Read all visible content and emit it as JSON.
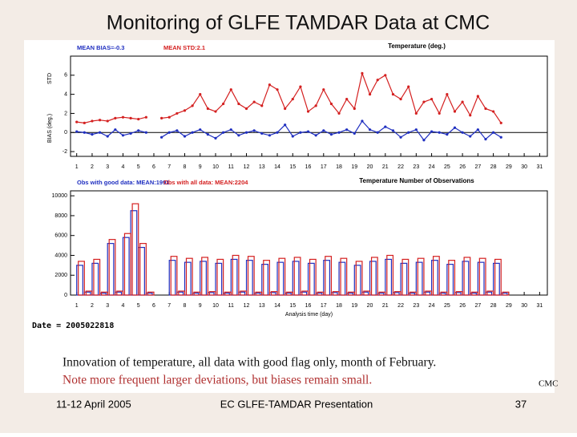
{
  "slide": {
    "title": "Monitoring of GLFE TAMDAR Data at CMC",
    "caption": [
      "Innovation of temperature, all data with good flag only, month of February.",
      "Note more frequent larger deviations, but biases remain small."
    ],
    "source": "CMC",
    "date_label": "Date = 2005022818",
    "footer": {
      "date": "11-12 April 2005",
      "event": "EC GLFE-TAMDAR Presentation",
      "page": "37"
    }
  },
  "chart_data": [
    {
      "type": "line",
      "title": "Temperature (deg.)",
      "y_label_top": "STD",
      "y_label": "BIAS (deg.)",
      "x": [
        1,
        1.5,
        2,
        2.5,
        3,
        3.5,
        4,
        4.5,
        5,
        5.5,
        6,
        6.5,
        7,
        7.5,
        8,
        8.5,
        9,
        9.5,
        10,
        10.5,
        11,
        11.5,
        12,
        12.5,
        13,
        13.5,
        14,
        14.5,
        15,
        15.5,
        16,
        16.5,
        17,
        17.5,
        18,
        18.5,
        19,
        19.5,
        20,
        20.5,
        21,
        21.5,
        22,
        22.5,
        23,
        23.5,
        24,
        24.5,
        25,
        25.5,
        26,
        26.5,
        27,
        27.5,
        28,
        28.5
      ],
      "series": [
        {
          "name": "MEAN BIAS=-0.3",
          "color": "#1f2fc0",
          "values": [
            0.1,
            0.0,
            -0.2,
            0.0,
            -0.4,
            0.3,
            -0.3,
            -0.1,
            0.2,
            0.0,
            null,
            -0.5,
            0.0,
            0.2,
            -0.4,
            0.0,
            0.3,
            -0.2,
            -0.6,
            0.0,
            0.3,
            -0.3,
            0.0,
            0.2,
            -0.1,
            -0.3,
            0.0,
            0.8,
            -0.4,
            0.0,
            0.1,
            -0.3,
            0.2,
            -0.2,
            0.0,
            0.3,
            -0.1,
            1.2,
            0.3,
            0.0,
            0.6,
            0.2,
            -0.5,
            0.0,
            0.3,
            -0.8,
            0.1,
            0.0,
            -0.2,
            0.5,
            0.0,
            -0.4,
            0.3,
            -0.7,
            0.0,
            -0.5
          ]
        },
        {
          "name": "MEAN STD:2.1",
          "color": "#d42020",
          "values": [
            1.1,
            1.0,
            1.2,
            1.3,
            1.2,
            1.5,
            1.6,
            1.5,
            1.4,
            1.6,
            null,
            1.5,
            1.6,
            2.0,
            2.3,
            2.8,
            4.0,
            2.5,
            2.2,
            3.0,
            4.5,
            3.0,
            2.5,
            3.2,
            2.8,
            5.0,
            4.5,
            2.5,
            3.5,
            4.8,
            2.2,
            2.8,
            4.5,
            3.0,
            2.0,
            3.5,
            2.5,
            6.2,
            4.0,
            5.5,
            6.0,
            4.0,
            3.5,
            4.8,
            2.0,
            3.2,
            3.5,
            2.0,
            4.0,
            2.2,
            3.2,
            1.8,
            3.8,
            2.5,
            2.2,
            1.0
          ]
        }
      ],
      "xlim": [
        0.6,
        31.5
      ],
      "xticks": [
        1,
        2,
        3,
        4,
        5,
        6,
        7,
        8,
        9,
        10,
        11,
        12,
        13,
        14,
        15,
        16,
        17,
        18,
        19,
        20,
        21,
        22,
        23,
        24,
        25,
        26,
        27,
        28,
        29,
        30,
        31
      ],
      "ylim": [
        -2.5,
        8
      ],
      "yticks": [
        -2,
        0,
        2,
        4,
        6
      ]
    },
    {
      "type": "bar",
      "title": "Temperature Number of Observations",
      "x_label": "Analysis time (day)",
      "x": [
        1,
        1.5,
        2,
        2.5,
        3,
        3.5,
        4,
        4.5,
        5,
        5.5,
        6,
        6.5,
        7,
        7.5,
        8,
        8.5,
        9,
        9.5,
        10,
        10.5,
        11,
        11.5,
        12,
        12.5,
        13,
        13.5,
        14,
        14.5,
        15,
        15.5,
        16,
        16.5,
        17,
        17.5,
        18,
        18.5,
        19,
        19.5,
        20,
        20.5,
        21,
        21.5,
        22,
        22.5,
        23,
        23.5,
        24,
        24.5,
        25,
        25.5,
        26,
        26.5,
        27,
        27.5,
        28,
        28.5
      ],
      "series": [
        {
          "name": "Obs with good data: MEAN:1991",
          "color": "#1f2fc0",
          "values": [
            3000,
            300,
            3200,
            200,
            5200,
            300,
            5800,
            8500,
            4800,
            200,
            0,
            0,
            3500,
            300,
            3300,
            200,
            3400,
            250,
            3200,
            200,
            3600,
            300,
            3500,
            200,
            3100,
            250,
            3300,
            200,
            3400,
            300,
            3200,
            200,
            3500,
            250,
            3300,
            200,
            3000,
            300,
            3400,
            200,
            3600,
            250,
            3200,
            200,
            3300,
            300,
            3500,
            200,
            3100,
            250,
            3400,
            200,
            3300,
            300,
            3200,
            200
          ]
        },
        {
          "name": "Obs with all data: MEAN:2204",
          "color": "#d42020",
          "values": [
            3400,
            400,
            3600,
            300,
            5600,
            400,
            6200,
            9200,
            5200,
            300,
            0,
            0,
            3900,
            400,
            3700,
            300,
            3800,
            350,
            3600,
            300,
            4000,
            400,
            3900,
            300,
            3500,
            350,
            3700,
            300,
            3800,
            400,
            3600,
            300,
            3900,
            350,
            3700,
            300,
            3400,
            400,
            3800,
            300,
            4000,
            350,
            3600,
            300,
            3700,
            400,
            3900,
            300,
            3500,
            350,
            3800,
            300,
            3700,
            400,
            3600,
            300
          ]
        }
      ],
      "xlim": [
        0.6,
        31.5
      ],
      "xticks": [
        1,
        2,
        3,
        4,
        5,
        6,
        7,
        8,
        9,
        10,
        11,
        12,
        13,
        14,
        15,
        16,
        17,
        18,
        19,
        20,
        21,
        22,
        23,
        24,
        25,
        26,
        27,
        28,
        29,
        30,
        31
      ],
      "ylim": [
        0,
        10500
      ],
      "yticks": [
        0,
        2000,
        4000,
        6000,
        8000,
        10000
      ]
    }
  ]
}
